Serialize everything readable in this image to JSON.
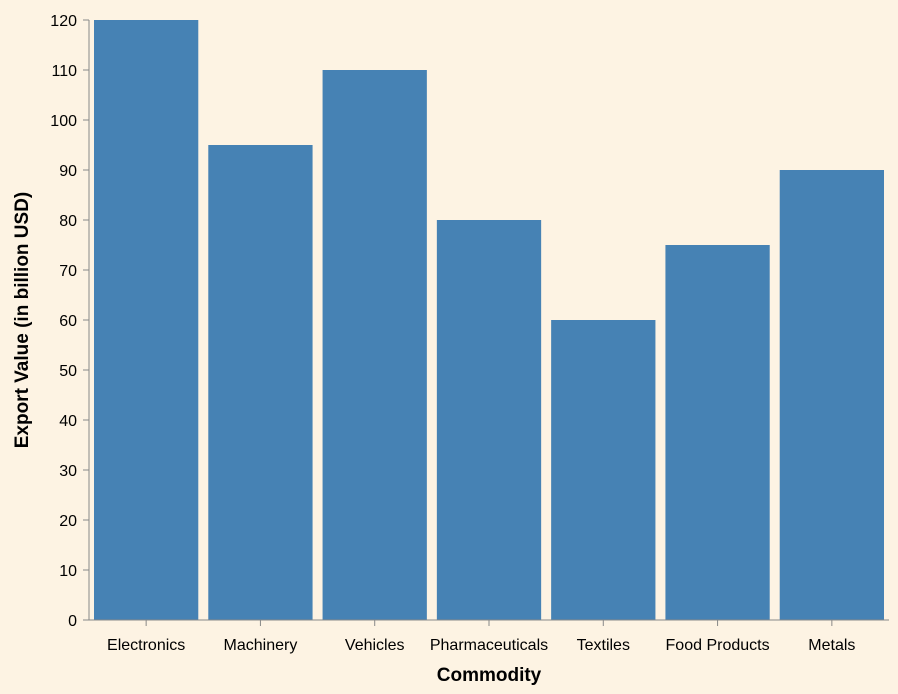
{
  "chart_data": {
    "type": "bar",
    "categories": [
      "Electronics",
      "Machinery",
      "Vehicles",
      "Pharmaceuticals",
      "Textiles",
      "Food Products",
      "Metals"
    ],
    "values": [
      120,
      95,
      110,
      80,
      60,
      75,
      90
    ],
    "xlabel": "Commodity",
    "ylabel": "Export Value (in billion USD)",
    "ylim": [
      0,
      120
    ],
    "yticks": [
      0,
      10,
      20,
      30,
      40,
      50,
      60,
      70,
      80,
      90,
      100,
      110,
      120
    ],
    "grid": false,
    "bar_color": "#4682b4",
    "background_color": "#fdf3e3"
  }
}
